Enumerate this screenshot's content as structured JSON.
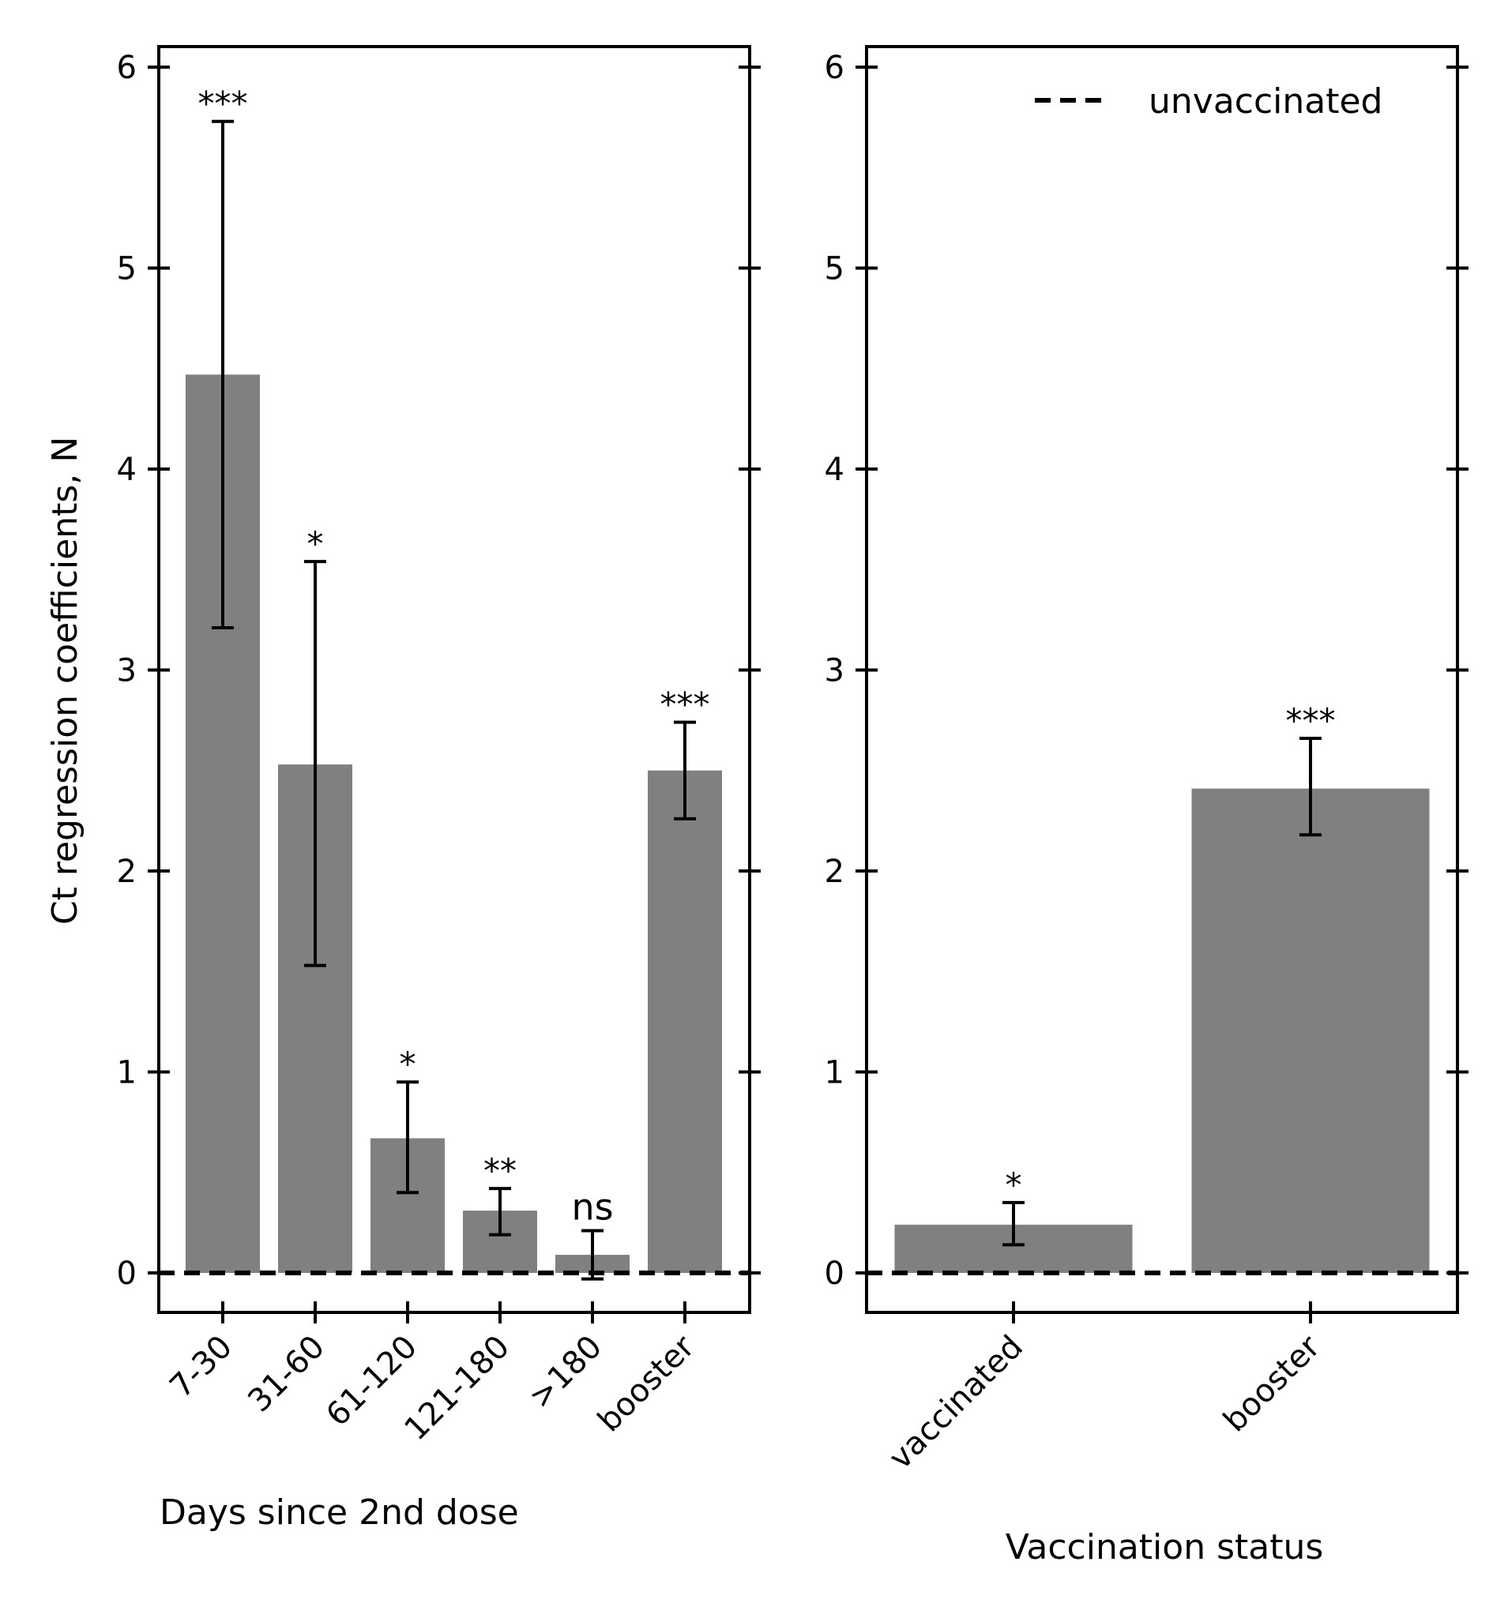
{
  "chart_data": [
    {
      "type": "bar",
      "categories": [
        "7-30",
        "31-60",
        "61-120",
        "121-180",
        ">180",
        "booster"
      ],
      "values": [
        4.47,
        2.53,
        0.67,
        0.31,
        0.09,
        2.5
      ],
      "error_low": [
        3.21,
        1.53,
        0.4,
        0.19,
        -0.03,
        2.26
      ],
      "error_high": [
        5.73,
        3.54,
        0.95,
        0.42,
        0.21,
        2.74
      ],
      "significance": [
        "***",
        "*",
        "*",
        "**",
        "ns",
        "***"
      ],
      "xlabel": "Days since 2nd dose",
      "ylabel": "Ct regression coefficients, N",
      "yticks": [
        "0",
        "1",
        "2",
        "3",
        "4",
        "5",
        "6"
      ],
      "ylim": [
        -0.2,
        6.1
      ],
      "reference_line": 0,
      "bar_color": "#808080"
    },
    {
      "type": "bar",
      "categories": [
        "vaccinated",
        "booster"
      ],
      "values": [
        0.24,
        2.41
      ],
      "error_low": [
        0.14,
        2.18
      ],
      "error_high": [
        0.35,
        2.66
      ],
      "significance": [
        "*",
        "***"
      ],
      "xlabel": "Vaccination status",
      "yticks": [
        "0",
        "1",
        "2",
        "3",
        "4",
        "5",
        "6"
      ],
      "ylim": [
        -0.2,
        6.1
      ],
      "reference_line": 0,
      "legend": [
        "unvaccinated"
      ],
      "legend_position": "top-right",
      "bar_color": "#808080"
    }
  ]
}
